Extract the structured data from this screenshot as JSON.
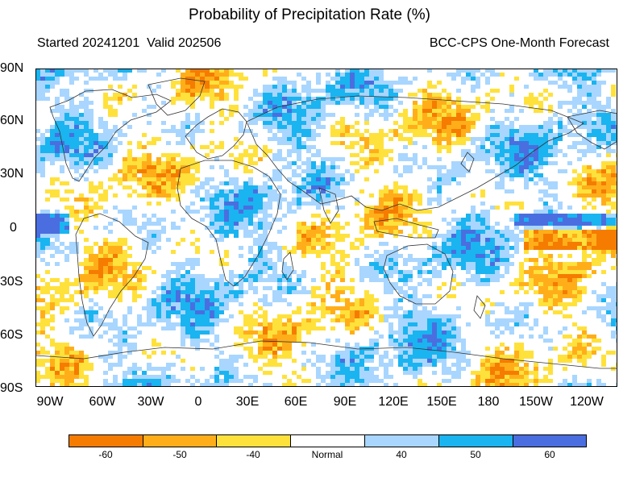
{
  "title": "Probability of Precipitation Rate (%)",
  "subtitle_left": "Started 20241201  Valid 202506",
  "subtitle_right": "BCC-CPS One-Month Forecast",
  "lat_labels": [
    "90N",
    "60N",
    "30N",
    "0",
    "30S",
    "60S",
    "90S"
  ],
  "lon_labels": [
    "90W",
    "60W",
    "30W",
    "0",
    "30E",
    "60E",
    "90E",
    "120E",
    "150E",
    "180",
    "150W",
    "120W"
  ],
  "colorbar": {
    "colors": [
      "#f57c00",
      "#ffae1a",
      "#ffe13c",
      "#ffffff",
      "#a8d6ff",
      "#1ab4f0",
      "#4a6ee0"
    ],
    "labels": [
      "-60",
      "-50",
      "-40",
      "Normal",
      "40",
      "50",
      "60"
    ]
  }
}
